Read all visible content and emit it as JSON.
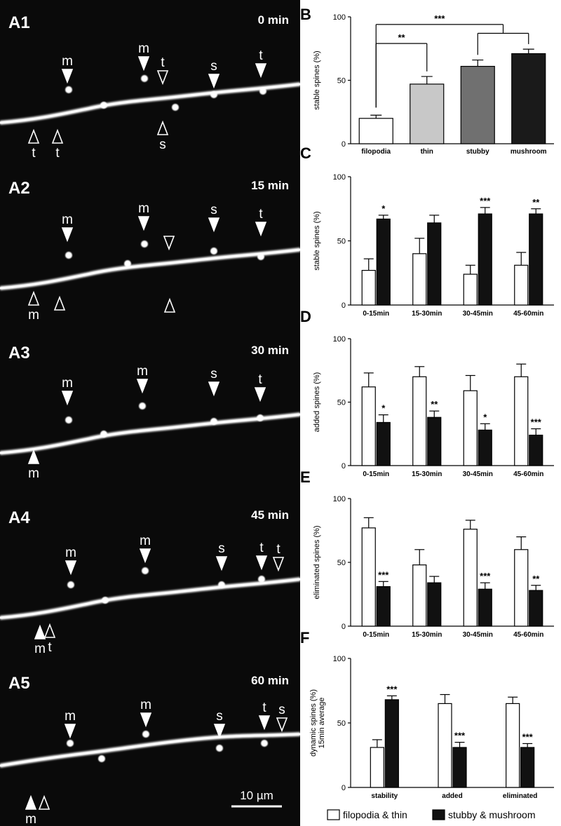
{
  "micrographs": [
    {
      "label": "A1",
      "time": "0 min",
      "arrows": [
        {
          "t": "m",
          "dir": "down",
          "filled": true
        },
        {
          "t": "m",
          "dir": "down",
          "filled": true
        },
        {
          "t": "t",
          "dir": "down",
          "filled": false
        },
        {
          "t": "s",
          "dir": "down",
          "filled": true
        },
        {
          "t": "t",
          "dir": "down",
          "filled": true
        },
        {
          "t": "t",
          "dir": "up",
          "filled": false
        },
        {
          "t": "t",
          "dir": "up",
          "filled": false
        },
        {
          "t": "s",
          "dir": "up",
          "filled": false
        }
      ]
    },
    {
      "label": "A2",
      "time": "15 min",
      "arrows": [
        {
          "t": "m",
          "dir": "down",
          "filled": true
        },
        {
          "t": "m",
          "dir": "down",
          "filled": true
        },
        {
          "t": "",
          "dir": "down",
          "filled": false
        },
        {
          "t": "s",
          "dir": "down",
          "filled": true
        },
        {
          "t": "t",
          "dir": "down",
          "filled": true
        },
        {
          "t": "m",
          "dir": "up",
          "filled": false
        },
        {
          "t": "",
          "dir": "up",
          "filled": false
        },
        {
          "t": "",
          "dir": "up",
          "filled": false
        }
      ]
    },
    {
      "label": "A3",
      "time": "30 min",
      "arrows": [
        {
          "t": "m",
          "dir": "down",
          "filled": true
        },
        {
          "t": "m",
          "dir": "down",
          "filled": true
        },
        {
          "t": "s",
          "dir": "down",
          "filled": true
        },
        {
          "t": "t",
          "dir": "down",
          "filled": true
        },
        {
          "t": "m",
          "dir": "up",
          "filled": true
        }
      ]
    },
    {
      "label": "A4",
      "time": "45 min",
      "arrows": [
        {
          "t": "m",
          "dir": "down",
          "filled": true
        },
        {
          "t": "m",
          "dir": "down",
          "filled": true
        },
        {
          "t": "s",
          "dir": "down",
          "filled": true
        },
        {
          "t": "t",
          "dir": "down",
          "filled": true
        },
        {
          "t": "t",
          "dir": "down",
          "filled": false
        },
        {
          "t": "m",
          "dir": "up",
          "filled": true
        },
        {
          "t": "t",
          "dir": "up",
          "filled": false
        }
      ]
    },
    {
      "label": "A5",
      "time": "60 min",
      "arrows": [
        {
          "t": "m",
          "dir": "down",
          "filled": true
        },
        {
          "t": "m",
          "dir": "down",
          "filled": true
        },
        {
          "t": "s",
          "dir": "down",
          "filled": true
        },
        {
          "t": "t",
          "dir": "down",
          "filled": true
        },
        {
          "t": "s",
          "dir": "down",
          "filled": false
        },
        {
          "t": "m",
          "dir": "up",
          "filled": true
        },
        {
          "t": "",
          "dir": "up",
          "filled": false
        }
      ]
    }
  ],
  "scale_bar": "10 µm",
  "legend": [
    {
      "name": "filopodia & thin",
      "color": "#ffffff"
    },
    {
      "name": "stubby & mushroom",
      "color": "#111111"
    }
  ],
  "chart_data": [
    {
      "panel": "B",
      "type": "bar",
      "ylabel": "stable spines (%)",
      "ylim": [
        0,
        100
      ],
      "yticks": [
        0,
        50,
        100
      ],
      "categories": [
        "filopodia",
        "thin",
        "stubby",
        "mushroom"
      ],
      "values": [
        20,
        47,
        61,
        71
      ],
      "errors": [
        2.5,
        6,
        5,
        3.5
      ],
      "colors": [
        "#ffffff",
        "#c8c8c8",
        "#707070",
        "#1a1a1a"
      ],
      "significance": [
        {
          "from": 0,
          "to": [
            1
          ],
          "label": "**"
        },
        {
          "from": 0,
          "to": [
            2,
            3
          ],
          "label": "***"
        }
      ]
    },
    {
      "panel": "C",
      "type": "bar",
      "ylabel": "stable spines (%)",
      "ylim": [
        0,
        100
      ],
      "yticks": [
        0,
        50,
        100
      ],
      "categories": [
        "0-15min",
        "15-30min",
        "30-45min",
        "45-60min"
      ],
      "series": [
        {
          "name": "filopodia & thin",
          "values": [
            27,
            40,
            24,
            31
          ],
          "errors": [
            9,
            12,
            7,
            10
          ]
        },
        {
          "name": "stubby & mushroom",
          "values": [
            67,
            64,
            71,
            71
          ],
          "errors": [
            3,
            6,
            5,
            4
          ]
        }
      ],
      "annotations": [
        "*",
        "",
        "***",
        "**"
      ]
    },
    {
      "panel": "D",
      "type": "bar",
      "ylabel": "added spines (%)",
      "ylim": [
        0,
        100
      ],
      "yticks": [
        0,
        50,
        100
      ],
      "categories": [
        "0-15min",
        "15-30min",
        "30-45min",
        "45-60min"
      ],
      "series": [
        {
          "name": "filopodia & thin",
          "values": [
            62,
            70,
            59,
            70
          ],
          "errors": [
            11,
            8,
            12,
            10
          ]
        },
        {
          "name": "stubby & mushroom",
          "values": [
            34,
            38,
            28,
            24
          ],
          "errors": [
            6,
            5,
            5,
            5
          ]
        }
      ],
      "annotations": [
        "*",
        "**",
        "*",
        "***"
      ]
    },
    {
      "panel": "E",
      "type": "bar",
      "ylabel": "eliminated spines (%)",
      "ylim": [
        0,
        100
      ],
      "yticks": [
        0,
        50,
        100
      ],
      "categories": [
        "0-15min",
        "15-30min",
        "30-45min",
        "45-60min"
      ],
      "series": [
        {
          "name": "filopodia & thin",
          "values": [
            77,
            48,
            76,
            60
          ],
          "errors": [
            8,
            12,
            7,
            10
          ]
        },
        {
          "name": "stubby & mushroom",
          "values": [
            31,
            34,
            29,
            28
          ],
          "errors": [
            4,
            5,
            5,
            4
          ]
        }
      ],
      "annotations": [
        "***",
        "",
        "***",
        "**"
      ]
    },
    {
      "panel": "F",
      "type": "bar",
      "ylabel": "dynamic spines (%)",
      "ylabel2": "15min average",
      "ylim": [
        0,
        100
      ],
      "yticks": [
        0,
        50,
        100
      ],
      "categories": [
        "stability",
        "added",
        "eliminated"
      ],
      "series": [
        {
          "name": "filopodia & thin",
          "values": [
            31,
            65,
            65
          ],
          "errors": [
            6,
            7,
            5
          ]
        },
        {
          "name": "stubby & mushroom",
          "values": [
            68,
            31,
            31
          ],
          "errors": [
            3,
            4,
            3
          ]
        }
      ],
      "annotations": [
        "***",
        "***",
        "***"
      ]
    }
  ]
}
